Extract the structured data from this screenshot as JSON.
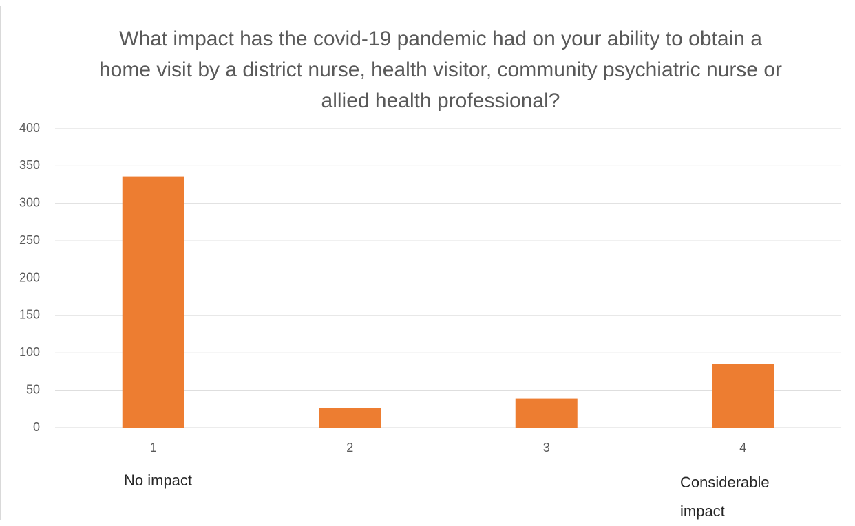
{
  "chart_data": {
    "type": "bar",
    "title": "What impact has the covid-19 pandemic had on your ability to obtain a home visit by a district nurse, health visitor, community psychiatric nurse or allied health professional?",
    "categories": [
      "1",
      "2",
      "3",
      "4"
    ],
    "values": [
      336,
      26,
      39,
      85
    ],
    "color": "#ed7d31",
    "ylim": [
      0,
      400
    ],
    "yticks": [
      0,
      50,
      100,
      150,
      200,
      250,
      300,
      350,
      400
    ],
    "grid": true,
    "annotations": [
      "No impact",
      "Considerable impact"
    ]
  }
}
